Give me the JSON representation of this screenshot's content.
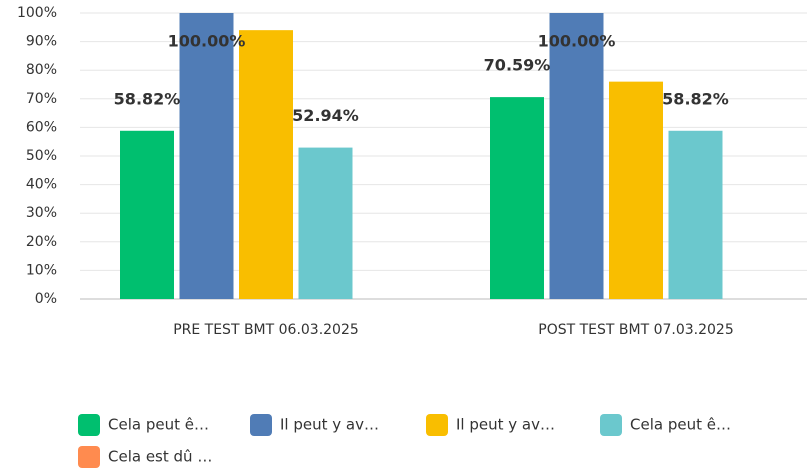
{
  "chart_data": {
    "type": "bar",
    "categories": [
      "PRE TEST BMT 06.03.2025",
      "POST TEST BMT 07.03.2025"
    ],
    "series": [
      {
        "name": "Cela peut ê…",
        "color": "#00bf6f",
        "values": [
          58.82,
          70.59
        ],
        "value_labels": [
          "58.82%",
          "70.59%"
        ]
      },
      {
        "name": "Il peut y av…",
        "color": "#507cb6",
        "values": [
          100,
          100
        ],
        "value_labels": [
          "100.00%",
          "100.00%"
        ]
      },
      {
        "name": "Il peut y  av…",
        "color": "#f9be00",
        "values": [
          94,
          76
        ],
        "value_labels": [
          null,
          null
        ]
      },
      {
        "name": "Cela peut ê…",
        "color": "#6bc8cd",
        "values": [
          52.94,
          58.82
        ],
        "value_labels": [
          "52.94%",
          "58.82%"
        ]
      },
      {
        "name": "Cela est dû …",
        "color": "#ff8b4f",
        "values": [
          0,
          0
        ],
        "value_labels": [
          null,
          null
        ]
      }
    ],
    "ylim": [
      0,
      100
    ],
    "yticks": [
      {
        "value": 0,
        "label": "0%"
      },
      {
        "value": 10,
        "label": "10%"
      },
      {
        "value": 20,
        "label": "20%"
      },
      {
        "value": 30,
        "label": "30%"
      },
      {
        "value": 40,
        "label": "40%"
      },
      {
        "value": 50,
        "label": "50%"
      },
      {
        "value": 60,
        "label": "60%"
      },
      {
        "value": 70,
        "label": "70%"
      },
      {
        "value": 80,
        "label": "80%"
      },
      {
        "value": 90,
        "label": "90%"
      },
      {
        "value": 100,
        "label": "100%"
      }
    ],
    "grid": true
  }
}
